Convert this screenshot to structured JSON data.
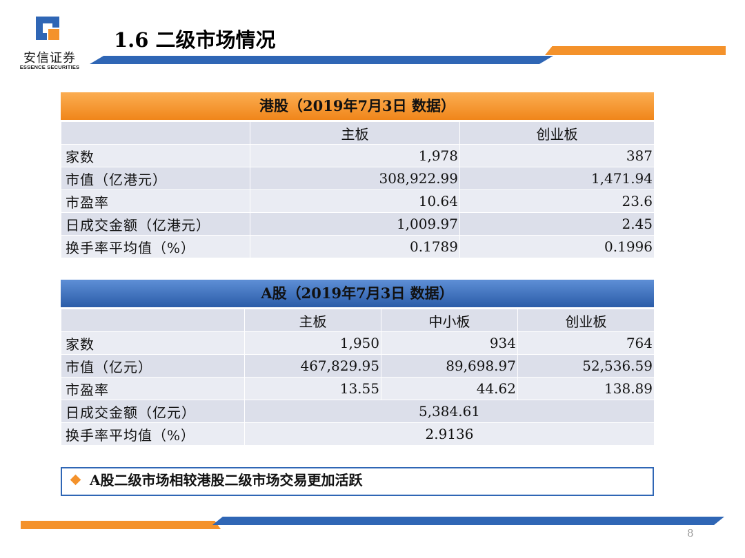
{
  "logo": {
    "name_cn": "安信证券",
    "name_en": "ESSENCE SECURITIES"
  },
  "title": "1.6 二级市场情况",
  "colors": {
    "orange": "#f4922b",
    "blue": "#2f66b5",
    "row_light": "#eaecf3",
    "row_dark": "#dcdfea"
  },
  "hk_table": {
    "banner": "港股（2019年7月3日 数据）",
    "headers": [
      "",
      "主板",
      "创业板"
    ],
    "rows": [
      {
        "label": "家数",
        "values": [
          "1,978",
          "387"
        ]
      },
      {
        "label": "市值（亿港元）",
        "values": [
          "308,922.99",
          "1,471.94"
        ]
      },
      {
        "label": "市盈率",
        "values": [
          "10.64",
          "23.6"
        ]
      },
      {
        "label": "日成交金额（亿港元）",
        "values": [
          "1,009.97",
          "2.45"
        ]
      },
      {
        "label": "换手率平均值（%）",
        "values": [
          "0.1789",
          "0.1996"
        ]
      }
    ]
  },
  "a_table": {
    "banner": "A股（2019年7月3日 数据）",
    "headers": [
      "",
      "主板",
      "中小板",
      "创业板"
    ],
    "rows": [
      {
        "label": "家数",
        "values": [
          "1,950",
          "934",
          "764"
        ]
      },
      {
        "label": "市值（亿元）",
        "values": [
          "467,829.95",
          "89,698.97",
          "52,536.59"
        ]
      },
      {
        "label": "市盈率",
        "values": [
          "13.55",
          "44.62",
          "138.89"
        ]
      },
      {
        "label": "日成交金额（亿元）",
        "merged": "5,384.61"
      },
      {
        "label": "换手率平均值（%）",
        "merged": "2.9136"
      }
    ]
  },
  "note": "A股二级市场相较港股二级市场交易更加活跃",
  "page_number": "8"
}
